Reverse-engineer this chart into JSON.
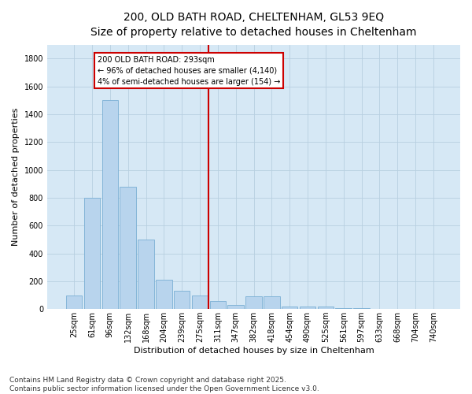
{
  "title_line1": "200, OLD BATH ROAD, CHELTENHAM, GL53 9EQ",
  "title_line2": "Size of property relative to detached houses in Cheltenham",
  "xlabel": "Distribution of detached houses by size in Cheltenham",
  "ylabel": "Number of detached properties",
  "bar_color": "#b8d4ed",
  "bar_edge_color": "#7aafd4",
  "background_color": "#d6e8f5",
  "grid_color": "#b8cfe0",
  "annotation_text": "200 OLD BATH ROAD: 293sqm\n← 96% of detached houses are smaller (4,140)\n4% of semi-detached houses are larger (154) →",
  "vline_color": "#cc0000",
  "annotation_box_edge_color": "#cc0000",
  "categories": [
    "25sqm",
    "61sqm",
    "96sqm",
    "132sqm",
    "168sqm",
    "204sqm",
    "239sqm",
    "275sqm",
    "311sqm",
    "347sqm",
    "382sqm",
    "418sqm",
    "454sqm",
    "490sqm",
    "525sqm",
    "561sqm",
    "597sqm",
    "633sqm",
    "668sqm",
    "704sqm",
    "740sqm"
  ],
  "values": [
    100,
    800,
    1500,
    880,
    500,
    210,
    130,
    100,
    55,
    30,
    90,
    90,
    18,
    18,
    18,
    5,
    5,
    3,
    2,
    2,
    2
  ],
  "ylim": [
    0,
    1900
  ],
  "yticks": [
    0,
    200,
    400,
    600,
    800,
    1000,
    1200,
    1400,
    1600,
    1800
  ],
  "footer_text": "Contains HM Land Registry data © Crown copyright and database right 2025.\nContains public sector information licensed under the Open Government Licence v3.0.",
  "title_fontsize": 10,
  "axis_label_fontsize": 8,
  "tick_fontsize": 7,
  "footer_fontsize": 6.5,
  "annot_fontsize": 7
}
